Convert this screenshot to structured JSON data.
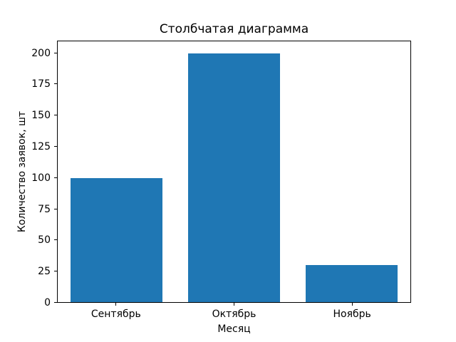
{
  "chart_data": {
    "type": "bar",
    "title": "Столбчатая диаграмма",
    "xlabel": "Месяц",
    "ylabel": "Количество заявок, шт",
    "categories": [
      "Сентябрь",
      "Октябрь",
      "Ноябрь"
    ],
    "values": [
      100,
      200,
      30
    ],
    "ylim": [
      0,
      210
    ],
    "yticks": [
      0,
      25,
      50,
      75,
      100,
      125,
      150,
      175,
      200
    ],
    "bar_color": "#1f77b4",
    "background_color": "#ffffff",
    "grid": false,
    "legend": null
  }
}
